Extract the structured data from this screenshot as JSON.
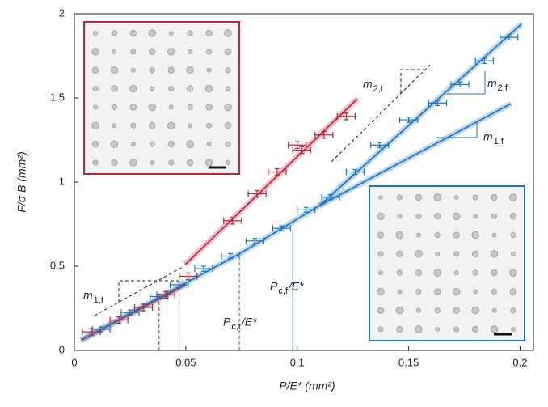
{
  "chart_data": {
    "type": "scatter",
    "x_label": "P/E* (mm²)",
    "y_label": "F/σ B (mm²)",
    "xlim": [
      0,
      0.206
    ],
    "ylim": [
      0,
      2
    ],
    "xticks": [
      0,
      0.05,
      0.1,
      0.15,
      0.2
    ],
    "yticks": [
      0,
      0.5,
      1,
      1.5,
      2
    ],
    "series": [
      {
        "color": "#b5283a",
        "xerr": 0.004,
        "yerr": 0.02,
        "x": [
          0.0076,
          0.02,
          0.031,
          0.041,
          0.051,
          0.071,
          0.082,
          0.091,
          0.1,
          0.102,
          0.112,
          0.122
        ],
        "values": [
          0.11,
          0.18,
          0.255,
          0.33,
          0.44,
          0.77,
          0.93,
          1.06,
          1.22,
          1.19,
          1.28,
          1.39
        ]
      },
      {
        "color": "#1f74b8",
        "xerr": 0.004,
        "yerr": 0.015,
        "x": [
          0.012,
          0.025,
          0.038,
          0.047,
          0.058,
          0.07,
          0.081,
          0.093,
          0.104,
          0.115,
          0.126,
          0.137,
          0.15,
          0.163,
          0.173,
          0.184,
          0.195
        ],
        "values": [
          0.125,
          0.225,
          0.32,
          0.39,
          0.485,
          0.56,
          0.65,
          0.725,
          0.835,
          0.91,
          1.06,
          1.22,
          1.37,
          1.47,
          1.58,
          1.72,
          1.86
        ]
      }
    ],
    "fits": [
      {
        "color": "#b5283a",
        "x": [
          0.003,
          0.05
        ],
        "y": [
          0.06,
          0.39
        ]
      },
      {
        "color": "#b5283a",
        "x": [
          0.0497,
          0.127
        ],
        "y": [
          0.51,
          1.495
        ]
      },
      {
        "color": "#1f74b8",
        "x": [
          0.003,
          0.05,
          0.075,
          0.11,
          0.196
        ],
        "y": [
          0.06,
          0.4,
          0.58,
          0.86,
          1.466
        ]
      },
      {
        "color": "#1f74b8",
        "x": [
          0.11,
          0.2007
        ],
        "y": [
          0.86,
          1.94
        ]
      }
    ],
    "pc_lines": [
      {
        "x": 0.038,
        "top": 0.33,
        "color": "#b5283a",
        "dashed": true
      },
      {
        "x": 0.047,
        "top": 0.34,
        "color": "#b5283a",
        "dashed": false
      },
      {
        "x": 0.074,
        "top": 0.56,
        "color": "#1f74b8",
        "dashed": true
      },
      {
        "x": 0.098,
        "top": 0.72,
        "color": "#1f74b8",
        "dashed": false
      }
    ],
    "annotations": [
      {
        "text": "m",
        "sub": "2,t",
        "color": "#222"
      },
      {
        "text": "m",
        "sub": "1,t",
        "color": "#222"
      },
      {
        "text": "m",
        "sub": "2,f",
        "color": "#1f74b8"
      },
      {
        "text": "m",
        "sub": "1,f",
        "color": "#1f74b8"
      },
      {
        "text": "P",
        "sub": "c,f",
        "tail": " /E*",
        "color": "#1f74b8"
      },
      {
        "text": "P",
        "sub": "c,t",
        "tail": " /E*",
        "color": "#1f74b8"
      }
    ]
  }
}
